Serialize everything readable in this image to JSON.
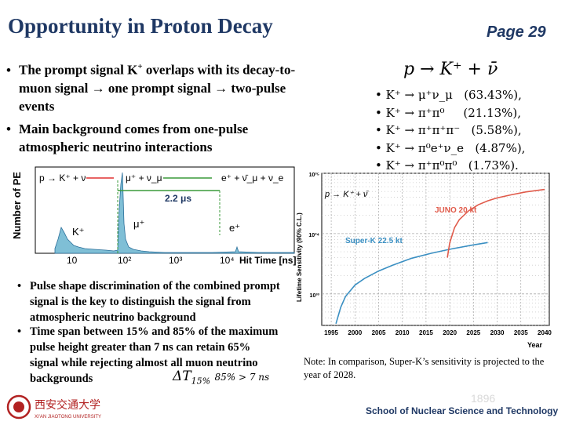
{
  "header": {
    "title": "Opportunity in Proton Decay",
    "page": "Page 29"
  },
  "bullets_top": [
    {
      "line1": "The prompt signal K",
      "sup": "+",
      "line1b": " overlaps with its decay-to-",
      "line2": "muon signal → one prompt signal → two-pulse",
      "line3": "events"
    },
    {
      "line1": "Main background comes from one-pulse",
      "line2": "atmospheric neutrino interactions"
    }
  ],
  "bullets_bottom": [
    {
      "line1": "Pulse shape discrimination of the combined prompt",
      "line2": "signal is the key to distinguish the signal from",
      "line3": "atmospheric neutrino background"
    },
    {
      "line1": "Time span between 15% and 85% of the maximum",
      "line2": "pulse height greater than 7 ns can retain 65%",
      "line3": "signal while rejecting almost all muon neutrino",
      "line4": "backgrounds"
    }
  ],
  "decay_channels": {
    "header": "p → K⁺ + ν̄",
    "rows": [
      {
        "lhs": "K⁺ → μ⁺ν_μ",
        "br": "(63.43%),"
      },
      {
        "lhs": "K⁺ → π⁺π⁰",
        "br": "(21.13%),"
      },
      {
        "lhs": "K⁺ → π⁺π⁺π⁻",
        "br": "(5.58%),"
      },
      {
        "lhs": "K⁺ → π⁰e⁺ν_e",
        "br": "(4.87%),"
      },
      {
        "lhs": "K⁺ → π⁺π⁰π⁰",
        "br": "(1.73%)."
      }
    ]
  },
  "pulse_plot": {
    "ylabel": "Number of PE",
    "xlabel": "Hit Time [ns]",
    "xticks": [
      "10",
      "10²",
      "10³",
      "10⁴"
    ],
    "legend_left": "p → K⁺ + ν",
    "legend_mid": "μ⁺ + ν_μ",
    "legend_right": "e⁺ + ν̄_μ + ν_e",
    "delay": "2.2 μs",
    "peak_k": "K⁺",
    "peak_mu": "μ⁺",
    "peak_e": "e⁺"
  },
  "chart_data": {
    "type": "line",
    "title": "",
    "xlabel": "Year",
    "ylabel": "Lifetime Sensitivity (90% C.L.)",
    "ylog": true,
    "xlim": [
      1993,
      2041
    ],
    "ylim": [
      3e+32,
      1e+35
    ],
    "xticks": [
      1995,
      2000,
      2005,
      2010,
      2015,
      2020,
      2025,
      2030,
      2035,
      2040
    ],
    "yticks": [
      "10³⁵",
      "10³⁴",
      "10³³"
    ],
    "annotation": "p → K⁺ + ν̄",
    "series": [
      {
        "name": "Super-K 22.5 kt",
        "color": "#3a8fc2",
        "x": [
          1996,
          1997,
          1998,
          2000,
          2002,
          2005,
          2008,
          2012,
          2016,
          2020,
          2025,
          2028
        ],
        "y": [
          3.2e+32,
          6e+32,
          9e+32,
          1.4e+33,
          1.8e+33,
          2.4e+33,
          3e+33,
          3.9e+33,
          4.7e+33,
          5.5e+33,
          6.5e+33,
          7.1e+33
        ]
      },
      {
        "name": "JUNO 20 kt",
        "color": "#e05a4a",
        "x": [
          2019.5,
          2020,
          2021,
          2022,
          2024,
          2026,
          2028,
          2030,
          2033,
          2036,
          2040
        ],
        "y": [
          4e+33,
          7e+33,
          1.25e+34,
          1.7e+34,
          2.4e+34,
          3e+34,
          3.5e+34,
          3.9e+34,
          4.4e+34,
          4.9e+34,
          5.4e+34
        ]
      }
    ]
  },
  "note": "Note: In comparison, Super-K’s sensitivity is projected to the year of 2028.",
  "cut_formula": "ΔT",
  "cut_sub": "15%",
  "cut_rest": "85% > 7 ns",
  "watermark_year": "1896",
  "footer": "School of Nuclear Science and Technology",
  "logo_cn": "西安交通大学",
  "logo_en": "XI'AN JIAOTONG UNIVERSITY",
  "colors": {
    "title": "#1f3864",
    "superk": "#3a8fc2",
    "juno": "#e05a4a",
    "histogram": "#7fbfd6",
    "accent_green": "#3a9a3a"
  }
}
